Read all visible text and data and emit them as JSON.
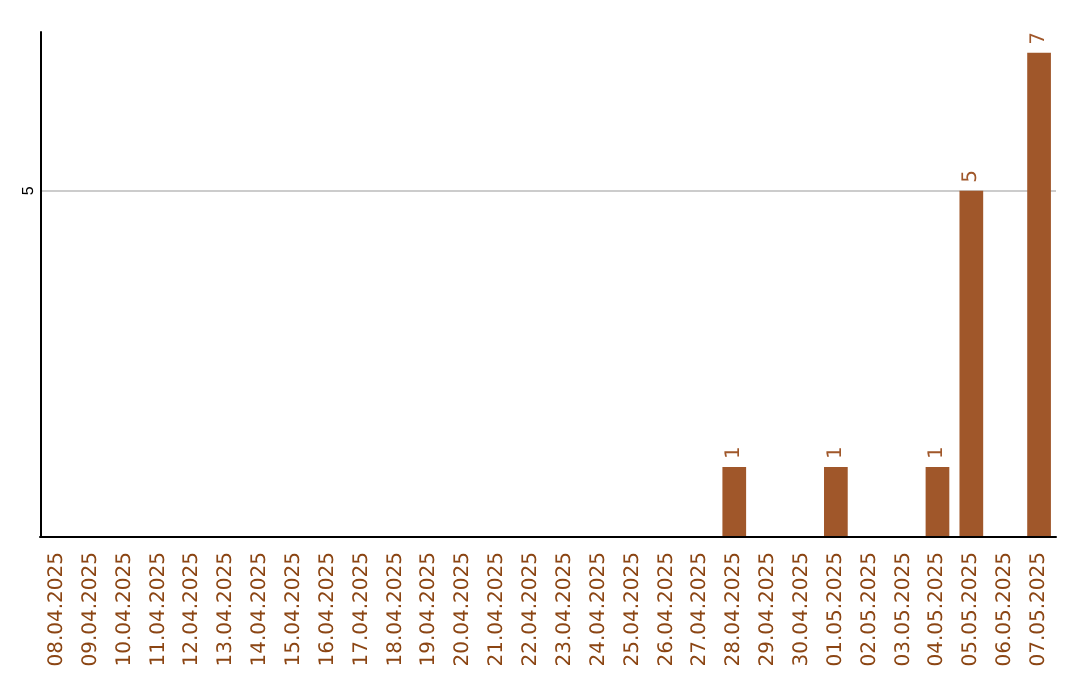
{
  "chart_data": {
    "type": "bar",
    "categories": [
      "08.04.2025",
      "09.04.2025",
      "10.04.2025",
      "11.04.2025",
      "12.04.2025",
      "13.04.2025",
      "14.04.2025",
      "15.04.2025",
      "16.04.2025",
      "17.04.2025",
      "18.04.2025",
      "19.04.2025",
      "20.04.2025",
      "21.04.2025",
      "22.04.2025",
      "23.04.2025",
      "24.04.2025",
      "25.04.2025",
      "26.04.2025",
      "27.04.2025",
      "28.04.2025",
      "29.04.2025",
      "30.04.2025",
      "01.05.2025",
      "02.05.2025",
      "03.05.2025",
      "04.05.2025",
      "05.05.2025",
      "06.05.2025",
      "07.05.2025"
    ],
    "values": [
      null,
      null,
      null,
      null,
      null,
      null,
      null,
      null,
      null,
      null,
      null,
      null,
      null,
      null,
      null,
      null,
      null,
      null,
      null,
      null,
      1,
      null,
      null,
      1,
      null,
      null,
      1,
      5,
      null,
      7
    ],
    "color": "#a0572a",
    "ylim": [
      0,
      7.3
    ],
    "yticks": [
      5
    ],
    "grid": "y",
    "data_labels": true
  }
}
